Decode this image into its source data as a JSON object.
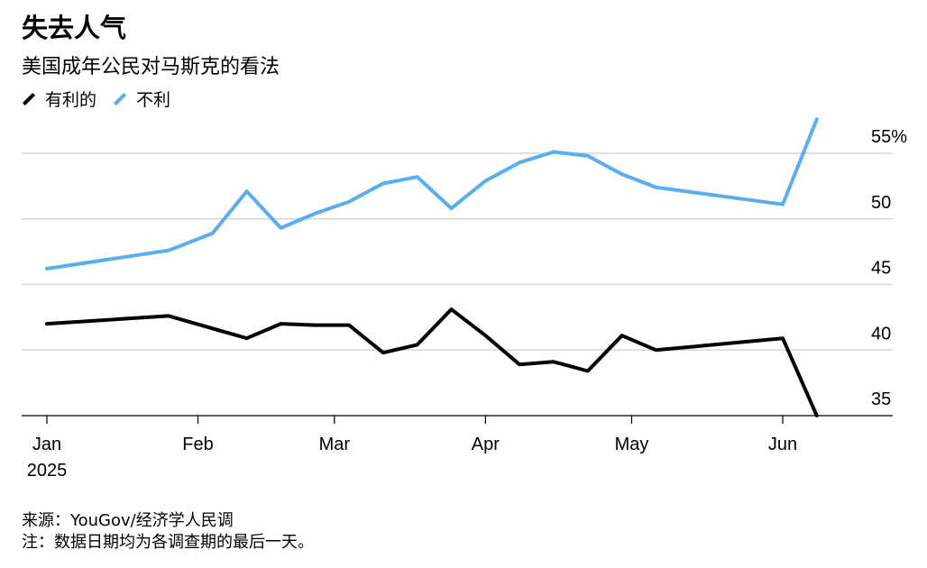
{
  "header": {
    "title": "失去人气",
    "subtitle": "美国成年公民对马斯克的看法"
  },
  "legend": [
    {
      "label": "有利的",
      "color": "#000000"
    },
    {
      "label": "不利",
      "color": "#5aaeef"
    }
  ],
  "footer": {
    "source": "来源：YouGov/经济学人民调",
    "note": "注：数据日期均为各调查期的最后一天。"
  },
  "chart_data": {
    "type": "line",
    "title": "失去人气",
    "subtitle": "美国成年公民对马斯克的看法",
    "x_tick_labels": [
      "Jan",
      "Feb",
      "Mar",
      "Apr",
      "May",
      "Jun"
    ],
    "x_tick_year": "2025",
    "y_tick_labels": [
      "55%",
      "50",
      "45",
      "40",
      "35"
    ],
    "y_ticks": [
      55,
      50,
      45,
      40,
      35
    ],
    "ylim": [
      35,
      57
    ],
    "grid": true,
    "legend_position": "top-left",
    "series": [
      {
        "name": "不利",
        "color": "#5aaeef",
        "points": [
          [
            "2025-01-01",
            46.2
          ],
          [
            "2025-01-26",
            47.6
          ],
          [
            "2025-02-04",
            48.9
          ],
          [
            "2025-02-11",
            52.1
          ],
          [
            "2025-02-18",
            49.3
          ],
          [
            "2025-02-25",
            50.4
          ],
          [
            "2025-03-04",
            51.3
          ],
          [
            "2025-03-11",
            52.7
          ],
          [
            "2025-03-18",
            53.2
          ],
          [
            "2025-03-25",
            50.8
          ],
          [
            "2025-04-01",
            52.9
          ],
          [
            "2025-04-08",
            54.3
          ],
          [
            "2025-04-15",
            55.1
          ],
          [
            "2025-04-22",
            54.8
          ],
          [
            "2025-04-29",
            53.4
          ],
          [
            "2025-05-06",
            52.4
          ],
          [
            "2025-06-01",
            51.1
          ],
          [
            "2025-06-08",
            57.6
          ]
        ]
      },
      {
        "name": "有利的",
        "color": "#000000",
        "points": [
          [
            "2025-01-01",
            42.0
          ],
          [
            "2025-01-26",
            42.6
          ],
          [
            "2025-02-11",
            40.9
          ],
          [
            "2025-02-18",
            42.0
          ],
          [
            "2025-02-25",
            41.9
          ],
          [
            "2025-03-04",
            41.9
          ],
          [
            "2025-03-11",
            39.8
          ],
          [
            "2025-03-18",
            40.4
          ],
          [
            "2025-03-25",
            43.1
          ],
          [
            "2025-04-01",
            41.1
          ],
          [
            "2025-04-08",
            38.9
          ],
          [
            "2025-04-15",
            39.1
          ],
          [
            "2025-04-22",
            38.4
          ],
          [
            "2025-04-29",
            41.1
          ],
          [
            "2025-05-06",
            40.0
          ],
          [
            "2025-06-01",
            40.9
          ],
          [
            "2025-06-08",
            35.0
          ]
        ]
      }
    ]
  }
}
